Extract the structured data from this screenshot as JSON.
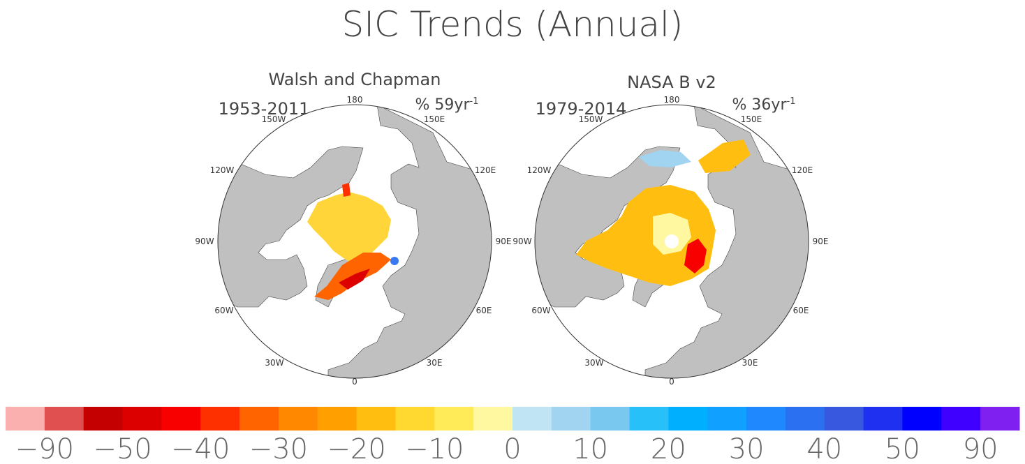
{
  "title": "SIC Trends (Annual)",
  "panels": [
    {
      "name": "Walsh and Chapman",
      "period": "1953-2011",
      "units_base": "% 59yr",
      "units_exp": "-1"
    },
    {
      "name": "NASA B v2",
      "period": "1979-2014",
      "units_base": "% 36yr",
      "units_exp": "-1"
    }
  ],
  "longitude_labels": {
    "top": "180",
    "upper_left": "150W",
    "upper_right": "150E",
    "mid_upper_left": "120W",
    "mid_upper_right": "120E",
    "left": "90W",
    "right": "90E",
    "mid_lower_left": "60W",
    "mid_lower_right": "60E",
    "lower_left": "30W",
    "lower_right": "30E",
    "bottom": "0"
  },
  "colors": {
    "land": "#c0c0c0",
    "ocean": "#ffffff",
    "outline": "#333333"
  },
  "colorbar": {
    "colors": [
      "#fbb0b0",
      "#e05050",
      "#c40000",
      "#dc0000",
      "#f80000",
      "#ff3000",
      "#ff6400",
      "#ff8800",
      "#ffa000",
      "#ffbe10",
      "#ffd830",
      "#ffea58",
      "#fff8a0",
      "#c0e4f4",
      "#a0d4f0",
      "#78c8f0",
      "#28c0f8",
      "#00b0ff",
      "#10a0ff",
      "#2088ff",
      "#2a70f0",
      "#3858e0",
      "#2030f0",
      "#0000ff",
      "#4000ff",
      "#8020f0"
    ],
    "labels": [
      "−90",
      "−50",
      "−40",
      "−30",
      "−20",
      "−10",
      "0",
      "10",
      "20",
      "30",
      "40",
      "50",
      "90"
    ]
  }
}
